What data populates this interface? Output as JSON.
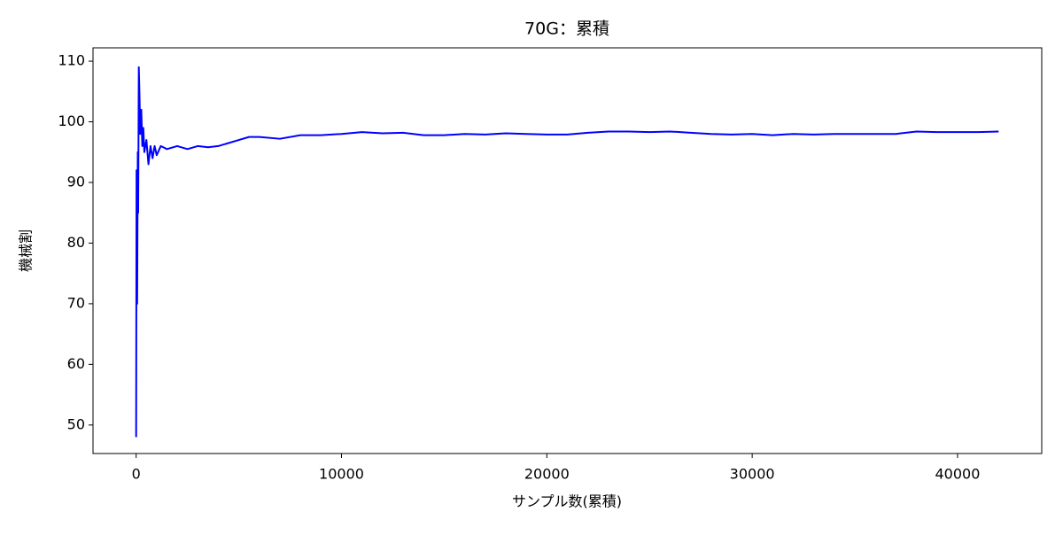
{
  "chart_data": {
    "type": "line",
    "title": "70G：累積",
    "xlabel": "サンプル数(累積)",
    "ylabel": "機械割",
    "x": [
      0,
      20,
      50,
      80,
      100,
      130,
      160,
      200,
      250,
      300,
      350,
      400,
      500,
      600,
      700,
      800,
      900,
      1000,
      1200,
      1500,
      2000,
      2500,
      3000,
      3500,
      4000,
      4500,
      5000,
      5500,
      6000,
      7000,
      8000,
      9000,
      10000,
      11000,
      12000,
      13000,
      14000,
      15000,
      16000,
      17000,
      18000,
      19000,
      20000,
      21000,
      22000,
      23000,
      24000,
      25000,
      26000,
      27000,
      28000,
      29000,
      30000,
      31000,
      32000,
      33000,
      34000,
      35000,
      36000,
      37000,
      38000,
      39000,
      40000,
      41000,
      42000
    ],
    "series": [
      {
        "name": "機械割",
        "color": "#0000ff",
        "values": [
          48,
          92,
          70,
          95,
          85,
          109,
          105,
          98,
          102,
          96,
          99,
          95,
          97,
          93,
          96,
          94,
          96,
          94.5,
          96,
          95.5,
          96,
          95.5,
          96,
          95.8,
          96,
          96.5,
          97,
          97.5,
          97.5,
          97.2,
          97.8,
          97.8,
          98,
          98.3,
          98.1,
          98.2,
          97.8,
          97.8,
          98,
          97.9,
          98.1,
          98,
          97.9,
          97.9,
          98.2,
          98.4,
          98.4,
          98.3,
          98.4,
          98.2,
          98,
          97.9,
          98,
          97.8,
          98,
          97.9,
          98,
          98,
          98,
          98,
          98.4,
          98.3,
          98.3,
          98.3,
          98.4
        ]
      }
    ],
    "xlim": [
      -2100,
      44100
    ],
    "ylim": [
      45.3,
      112.2
    ],
    "xticks": [
      0,
      10000,
      20000,
      30000,
      40000
    ],
    "yticks": [
      50,
      60,
      70,
      80,
      90,
      100,
      110
    ]
  }
}
